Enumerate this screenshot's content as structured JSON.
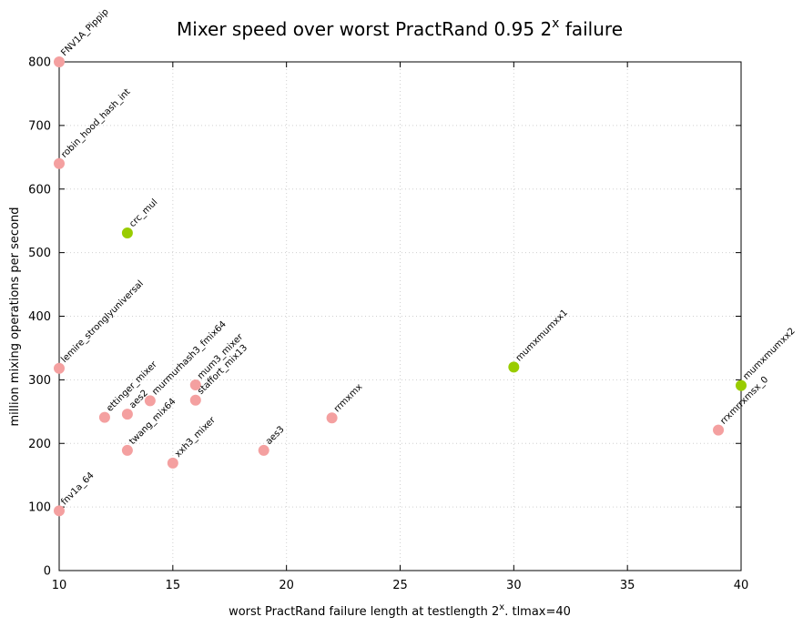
{
  "chart_data": {
    "type": "scatter",
    "title": "Mixer speed over worst PractRand 0.95 2",
    "title_sup": "x",
    "title_tail": " failure",
    "xlabel": "worst PractRand failure length at testlength 2",
    "xlabel_sup": "x",
    "xlabel_tail": ". tlmax=40",
    "ylabel": "million mixing operations per second",
    "xlim": [
      10,
      40
    ],
    "ylim": [
      0,
      800
    ],
    "x_ticks": [
      10,
      15,
      20,
      25,
      30,
      35,
      40
    ],
    "y_ticks": [
      0,
      100,
      200,
      300,
      400,
      500,
      600,
      700,
      800
    ],
    "grid": true,
    "colors": {
      "pink": "#f4a0a0",
      "green": "#99cc00"
    },
    "points": [
      {
        "label": "FNV1A_Pippip",
        "x": 10,
        "y": 800,
        "color": "pink"
      },
      {
        "label": "robin_hood_hash_int",
        "x": 10,
        "y": 640,
        "color": "pink"
      },
      {
        "label": "crc_mul",
        "x": 13,
        "y": 531,
        "color": "green"
      },
      {
        "label": "lemire_stronglyuniversal",
        "x": 10,
        "y": 318,
        "color": "pink"
      },
      {
        "label": "ettinger_mixer",
        "x": 12,
        "y": 241,
        "color": "pink"
      },
      {
        "label": "aes2",
        "x": 13,
        "y": 246,
        "color": "pink"
      },
      {
        "label": "murmurhash3_fmix64",
        "x": 14,
        "y": 267,
        "color": "pink"
      },
      {
        "label": "mum3_mixer",
        "x": 16,
        "y": 292,
        "color": "pink"
      },
      {
        "label": "staffort_mix13",
        "x": 16,
        "y": 268,
        "color": "pink"
      },
      {
        "label": "twang_mix64",
        "x": 13,
        "y": 189,
        "color": "pink"
      },
      {
        "label": "xxh3_mixer",
        "x": 15,
        "y": 169,
        "color": "pink"
      },
      {
        "label": "aes3",
        "x": 19,
        "y": 189,
        "color": "pink"
      },
      {
        "label": "rrmxmx",
        "x": 22,
        "y": 240,
        "color": "pink"
      },
      {
        "label": "mumxmumxx1",
        "x": 30,
        "y": 320,
        "color": "green"
      },
      {
        "label": "mumxmumxx2",
        "x": 40,
        "y": 291,
        "color": "green"
      },
      {
        "label": "rrxmrrxmsx_0",
        "x": 39,
        "y": 221,
        "color": "pink"
      },
      {
        "label": "fnv1a_64",
        "x": 10,
        "y": 94,
        "color": "pink"
      }
    ]
  }
}
